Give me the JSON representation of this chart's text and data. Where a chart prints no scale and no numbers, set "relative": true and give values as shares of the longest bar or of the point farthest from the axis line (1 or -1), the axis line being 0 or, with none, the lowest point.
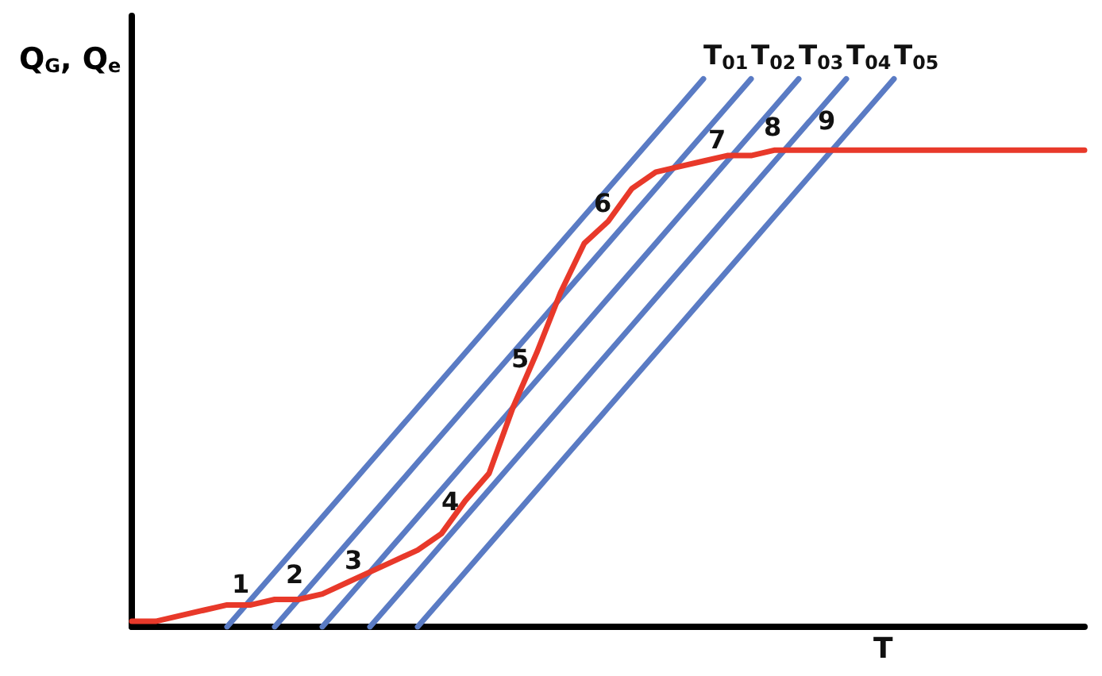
{
  "chart_data": {
    "type": "line",
    "relative": true,
    "xlabel": "T",
    "ylabel": "Q$_{G}$, Q$_{e}$",
    "legend": false,
    "grid": false,
    "marker": "none",
    "line_style": "solid",
    "categories": [
      null,
      null,
      null,
      null,
      null,
      null,
      null,
      null,
      null,
      null,
      null,
      null,
      null,
      null,
      null,
      null,
      null,
      null,
      null,
      null,
      null,
      null,
      null,
      null,
      null,
      null,
      null,
      null,
      null,
      null,
      null,
      null,
      null,
      null,
      null,
      null,
      null,
      null,
      null,
      null,
      null
    ],
    "series": [
      {
        "color": "#e8392a",
        "values": [
          0.01,
          0.01,
          0.02,
          0.03,
          0.04,
          0.04,
          0.05,
          0.05,
          0.06,
          0.08,
          0.1,
          0.12,
          0.14,
          0.17,
          0.23,
          0.28,
          0.4,
          0.5,
          0.61,
          0.7,
          0.74,
          0.8,
          0.83,
          0.84,
          0.85,
          0.86,
          0.86,
          0.87,
          0.87,
          0.87,
          0.87,
          0.87,
          0.87,
          0.87,
          0.87,
          0.87,
          0.87,
          0.87,
          0.87,
          0.87,
          0.87
        ]
      },
      {
        "name": "T$_{01}$",
        "color": "#5a7bc4",
        "values": [
          null,
          null,
          null,
          null,
          0,
          0.05,
          0.1,
          0.15,
          0.2,
          0.25,
          0.3,
          0.35,
          0.4,
          0.45,
          0.5,
          0.55,
          0.6,
          0.65,
          0.7,
          0.75,
          0.8,
          0.85,
          0.9,
          0.95,
          1,
          null,
          null,
          null,
          null,
          null,
          null,
          null,
          null,
          null,
          null,
          null,
          null,
          null,
          null,
          null,
          null
        ]
      },
      {
        "name": "T$_{02}$",
        "color": "#5a7bc4",
        "values": [
          null,
          null,
          null,
          null,
          null,
          null,
          0,
          0.05,
          0.1,
          0.15,
          0.2,
          0.25,
          0.3,
          0.35,
          0.4,
          0.45,
          0.5,
          0.55,
          0.6,
          0.65,
          0.7,
          0.75,
          0.8,
          0.85,
          0.9,
          0.95,
          1,
          null,
          null,
          null,
          null,
          null,
          null,
          null,
          null,
          null,
          null,
          null,
          null,
          null,
          null
        ]
      },
      {
        "name": "T$_{03}$",
        "color": "#5a7bc4",
        "values": [
          null,
          null,
          null,
          null,
          null,
          null,
          null,
          null,
          0,
          0.05,
          0.1,
          0.15,
          0.2,
          0.25,
          0.3,
          0.35,
          0.4,
          0.45,
          0.5,
          0.55,
          0.6,
          0.65,
          0.7,
          0.75,
          0.8,
          0.85,
          0.9,
          0.95,
          1,
          null,
          null,
          null,
          null,
          null,
          null,
          null,
          null,
          null,
          null,
          null,
          null
        ]
      },
      {
        "name": "T$_{04}$",
        "color": "#5a7bc4",
        "values": [
          null,
          null,
          null,
          null,
          null,
          null,
          null,
          null,
          null,
          null,
          0,
          0.05,
          0.1,
          0.15,
          0.2,
          0.25,
          0.3,
          0.35,
          0.4,
          0.45,
          0.5,
          0.55,
          0.6,
          0.65,
          0.7,
          0.75,
          0.8,
          0.85,
          0.9,
          0.95,
          1,
          null,
          null,
          null,
          null,
          null,
          null,
          null,
          null,
          null,
          null
        ]
      },
      {
        "name": "T$_{05}$",
        "color": "#5a7bc4",
        "values": [
          null,
          null,
          null,
          null,
          null,
          null,
          null,
          null,
          null,
          null,
          null,
          null,
          0,
          0.05,
          0.1,
          0.15,
          0.2,
          0.25,
          0.3,
          0.35,
          0.4,
          0.45,
          0.5,
          0.55,
          0.6,
          0.65,
          0.7,
          0.75,
          0.8,
          0.85,
          0.9,
          0.95,
          1,
          null,
          null,
          null,
          null,
          null,
          null,
          null,
          null
        ]
      }
    ],
    "annotations": [
      "1",
      "2",
      "3",
      "4",
      "5",
      "6",
      "7",
      "8",
      "9"
    ]
  }
}
